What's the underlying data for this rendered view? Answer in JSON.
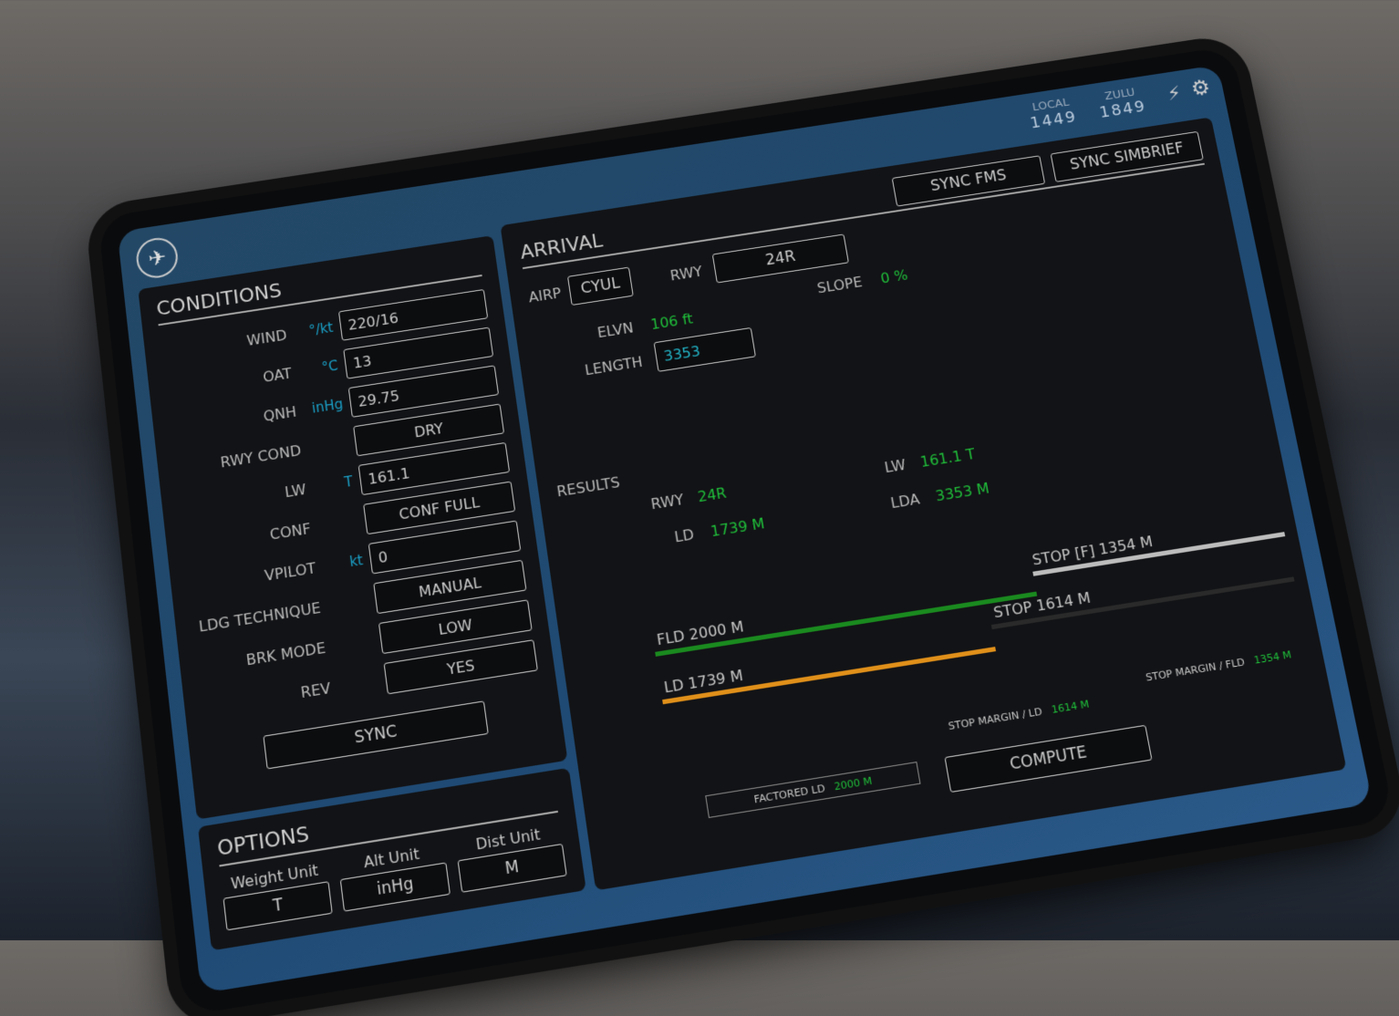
{
  "header": {
    "local_label": "LOCAL",
    "local_time": "1449",
    "zulu_label": "ZULU",
    "zulu_time": "1849",
    "icons": [
      "airplane-icon",
      "plug-icon",
      "gear-icon"
    ]
  },
  "conditions": {
    "title": "CONDITIONS",
    "rows": [
      {
        "label": "WIND",
        "unit": "°/kt",
        "value": "220/16",
        "align": "left"
      },
      {
        "label": "OAT",
        "unit": "°C",
        "value": "13",
        "align": "left"
      },
      {
        "label": "QNH",
        "unit": "inHg",
        "value": "29.75",
        "align": "left"
      },
      {
        "label": "RWY COND",
        "unit": "",
        "value": "DRY",
        "align": "center"
      },
      {
        "label": "LW",
        "unit": "T",
        "value": "161.1",
        "align": "left"
      },
      {
        "label": "CONF",
        "unit": "",
        "value": "CONF FULL",
        "align": "center"
      },
      {
        "label": "VPILOT",
        "unit": "kt",
        "value": "0",
        "align": "left"
      },
      {
        "label": "LDG TECHNIQUE",
        "unit": "",
        "value": "MANUAL",
        "align": "center"
      },
      {
        "label": "BRK MODE",
        "unit": "",
        "value": "LOW",
        "align": "center"
      },
      {
        "label": "REV",
        "unit": "",
        "value": "YES",
        "align": "center"
      }
    ],
    "sync_label": "SYNC"
  },
  "options": {
    "title": "OPTIONS",
    "items": [
      {
        "label": "Weight Unit",
        "value": "T"
      },
      {
        "label": "Alt Unit",
        "value": "inHg"
      },
      {
        "label": "Dist Unit",
        "value": "M"
      }
    ]
  },
  "arrival": {
    "title": "ARRIVAL",
    "sync_fms": "SYNC FMS",
    "sync_simbrief": "SYNC SIMBRIEF",
    "airp_label": "AIRP",
    "airp": "CYUL",
    "rwy_label": "RWY",
    "rwy": "24R",
    "slope_label": "SLOPE",
    "slope": "0 %",
    "elvn_label": "ELVN",
    "elvn": "106 ft",
    "length_label": "LENGTH",
    "length": "3353"
  },
  "results": {
    "title": "RESULTS",
    "rwy_label": "RWY",
    "rwy": "24R",
    "ld_label": "LD",
    "ld": "1739 M",
    "lw_label": "LW",
    "lw": "161.1 T",
    "lda_label": "LDA",
    "lda": "3353 M",
    "fld_bar": "FLD 2000 M",
    "stop_f": "STOP [F] 1354 M",
    "ld_bar": "LD 1739 M",
    "stop": "STOP 1614 M",
    "factored_ld_label": "FACTORED LD",
    "factored_ld": "2000 M",
    "margin_ld_label": "STOP MARGIN / LD",
    "margin_ld": "1614 M",
    "margin_fld_label": "STOP MARGIN / FLD",
    "margin_fld": "1354 M",
    "compute_label": "COMPUTE",
    "colors": {
      "fld": "#1a8a1f",
      "ld": "#e0901a",
      "stop_f": "#bdbdbd",
      "stop": "#2a2a2a"
    }
  }
}
